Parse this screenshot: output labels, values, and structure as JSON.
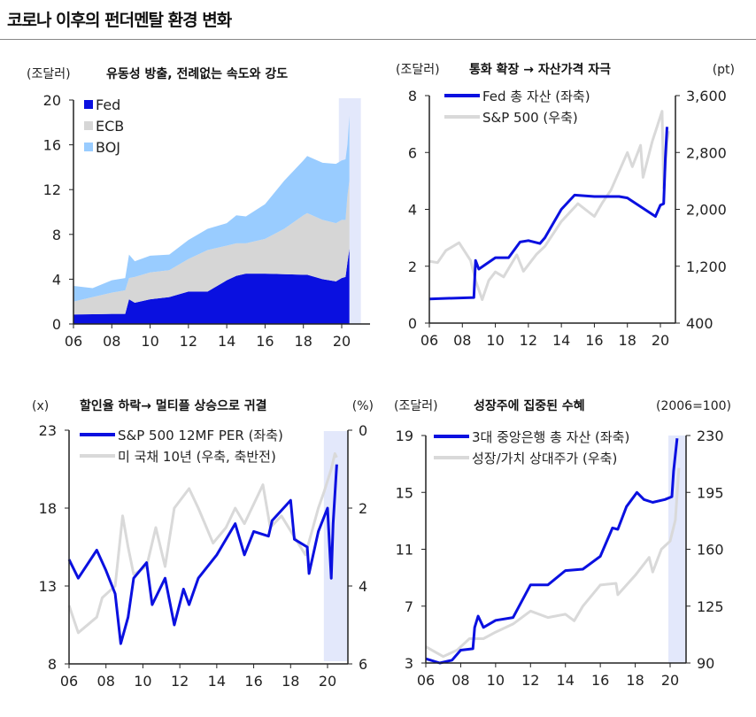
{
  "page_title": "코로나 이후의 펀더멘탈 환경 변화",
  "chart_data": [
    {
      "type": "area",
      "stacked": true,
      "title": "유동성 방출, 전례없는 속도와 강도",
      "ylabel": "(조달러)",
      "ylim": [
        0,
        20
      ],
      "yticks": [
        0,
        4,
        8,
        12,
        16,
        20
      ],
      "xticks": [
        "06",
        "08",
        "10",
        "12",
        "14",
        "16",
        "18",
        "20"
      ],
      "xlim": [
        2006,
        2021.2
      ],
      "shaded_period": [
        2019.85,
        2021
      ],
      "legend_position": "top-left",
      "x": [
        2006,
        2007,
        2008,
        2008.7,
        2008.9,
        2009.2,
        2010,
        2011,
        2012,
        2013,
        2014,
        2014.5,
        2015,
        2016,
        2017,
        2018,
        2018.2,
        2019,
        2019.7,
        2020,
        2020.2,
        2020.3,
        2020.4
      ],
      "series": [
        {
          "name": "Fed",
          "color": "#0a10e0",
          "values": [
            0.85,
            0.87,
            0.9,
            0.9,
            2.2,
            1.9,
            2.2,
            2.4,
            2.9,
            2.9,
            3.9,
            4.3,
            4.5,
            4.5,
            4.45,
            4.4,
            4.4,
            4.0,
            3.8,
            4.1,
            4.2,
            5.5,
            6.7
          ]
        },
        {
          "name": "ECB",
          "color": "#d6d6d6",
          "values": [
            1.15,
            1.53,
            1.9,
            2.1,
            1.9,
            2.3,
            2.4,
            2.4,
            2.9,
            3.7,
            3.1,
            2.9,
            2.7,
            3.1,
            4.05,
            5.3,
            5.5,
            5.3,
            5.2,
            5.2,
            5.1,
            6.0,
            6.1
          ]
        },
        {
          "name": "BOJ",
          "color": "#99ccff",
          "values": [
            1.4,
            0.8,
            1.1,
            1.1,
            2.1,
            1.4,
            1.5,
            1.4,
            1.7,
            1.9,
            2.0,
            2.5,
            2.4,
            3.1,
            4.3,
            4.9,
            5.1,
            5.1,
            5.3,
            5.3,
            5.4,
            4.5,
            5.8
          ]
        }
      ]
    },
    {
      "type": "line",
      "title": "통화 확장 → 자산가격 자극",
      "ylabel": "(조달러)",
      "y2label": "(pt)",
      "ylim": [
        0,
        8
      ],
      "yticks": [
        0,
        2,
        4,
        6,
        8
      ],
      "y2lim": [
        400,
        3600
      ],
      "y2ticks": [
        "400",
        "1,200",
        "2,000",
        "2,800",
        "3,600"
      ],
      "xticks": [
        "06",
        "08",
        "10",
        "12",
        "14",
        "16",
        "18",
        "20"
      ],
      "xlim": [
        2006,
        2021.2
      ],
      "legend_position": "top-left",
      "series": [
        {
          "name": "S&P 500 (우축)",
          "axis": "right",
          "color": "#d9d9d9",
          "x": [
            2006,
            2006.5,
            2007,
            2007.8,
            2008.5,
            2008.8,
            2009.2,
            2009.6,
            2010,
            2010.5,
            2011.3,
            2011.7,
            2012.5,
            2013,
            2014,
            2015,
            2016,
            2016.5,
            2017,
            2018,
            2018.3,
            2018.8,
            2018.95,
            2019.5,
            2020.1,
            2020.2,
            2020.4,
            2020.5
          ],
          "values": [
            1270,
            1250,
            1420,
            1530,
            1280,
            1000,
            730,
            1000,
            1120,
            1050,
            1360,
            1130,
            1370,
            1480,
            1830,
            2080,
            1900,
            2100,
            2270,
            2800,
            2600,
            2900,
            2450,
            2950,
            3380,
            2300,
            2950,
            3100
          ]
        },
        {
          "name": "Fed 총 자산 (좌축)",
          "axis": "left",
          "color": "#0a10e0",
          "x": [
            2006,
            2008.7,
            2008.8,
            2009,
            2009.5,
            2010,
            2010.8,
            2011.5,
            2012,
            2012.7,
            2013,
            2014,
            2014.8,
            2016,
            2017.5,
            2018,
            2019.7,
            2020,
            2020.2,
            2020.3,
            2020.4
          ],
          "values": [
            0.85,
            0.9,
            2.2,
            1.9,
            2.1,
            2.3,
            2.3,
            2.85,
            2.9,
            2.8,
            3.0,
            4.0,
            4.5,
            4.45,
            4.45,
            4.4,
            3.75,
            4.15,
            4.2,
            5.8,
            6.9
          ]
        }
      ]
    },
    {
      "type": "line",
      "title": "할인율 하락→ 멀티플 상승으로 귀결",
      "ylabel": "(x)",
      "y2label": "(%)",
      "ylim": [
        8,
        23
      ],
      "yticks": [
        8,
        13,
        18,
        23
      ],
      "y2lim": [
        6,
        0
      ],
      "y2ticks": [
        "6",
        "4",
        "2",
        "0"
      ],
      "y2_inverted": true,
      "xticks": [
        "06",
        "08",
        "10",
        "12",
        "14",
        "16",
        "18",
        "20"
      ],
      "xlim": [
        2006,
        2021.2
      ],
      "shaded_period": [
        2019.8,
        2021.2
      ],
      "legend_position": "top-left",
      "series": [
        {
          "name": "미 국채 10년 (우축, 축반전)",
          "axis": "right",
          "color": "#d9d9d9",
          "x": [
            2006,
            2006.5,
            2007.5,
            2007.8,
            2008.5,
            2008.9,
            2009.2,
            2009.5,
            2010.2,
            2010.7,
            2011.2,
            2011.7,
            2012.5,
            2013,
            2013.8,
            2014.5,
            2015,
            2015.5,
            2016.5,
            2016.9,
            2017.5,
            2018.8,
            2019.5,
            2019.8,
            2020.2,
            2020.4,
            2020.5
          ],
          "values": [
            4.5,
            5.2,
            4.8,
            4.3,
            4.0,
            2.2,
            3.0,
            3.7,
            3.5,
            2.5,
            3.5,
            2.0,
            1.5,
            2.0,
            2.9,
            2.5,
            2.0,
            2.4,
            1.4,
            2.5,
            2.2,
            3.2,
            2.0,
            1.6,
            1.0,
            0.6,
            0.7
          ]
        },
        {
          "name": "S&P 500 12MF PER (좌축)",
          "axis": "left",
          "color": "#0a10e0",
          "x": [
            2006,
            2006.5,
            2007.5,
            2008,
            2008.5,
            2008.8,
            2009.2,
            2009.5,
            2010.2,
            2010.5,
            2011.2,
            2011.7,
            2012.2,
            2012.5,
            2013,
            2014,
            2015,
            2015.5,
            2016,
            2016.8,
            2017,
            2018,
            2018.2,
            2018.9,
            2019,
            2019.5,
            2020,
            2020.2,
            2020.3,
            2020.5
          ],
          "values": [
            14.7,
            13.5,
            15.3,
            14,
            12.5,
            9.3,
            11,
            13.5,
            14.5,
            11.8,
            13.5,
            10.5,
            12.8,
            11.8,
            13.5,
            15,
            17,
            15,
            16.5,
            16.2,
            17.2,
            18.5,
            16,
            15.5,
            13.8,
            16.5,
            18,
            13.5,
            17,
            20.8
          ]
        }
      ]
    },
    {
      "type": "line",
      "title": "성장주에 집중된 수혜",
      "ylabel": "(조달러)",
      "y2label": "(2006=100)",
      "ylim": [
        3,
        19
      ],
      "yticks": [
        3,
        7,
        11,
        15,
        19
      ],
      "y2lim": [
        90,
        230
      ],
      "y2ticks": [
        "90",
        "125",
        "160",
        "195",
        "230"
      ],
      "xticks": [
        "06",
        "08",
        "10",
        "12",
        "14",
        "16",
        "18",
        "20"
      ],
      "xlim": [
        2006,
        2021.2
      ],
      "shaded_period": [
        2019.9,
        2021
      ],
      "legend_position": "top-left",
      "series": [
        {
          "name": "성장/가치 상대주가 (우축)",
          "axis": "right",
          "color": "#d9d9d9",
          "x": [
            2006,
            2007,
            2007.8,
            2008.5,
            2009.3,
            2010,
            2011,
            2012,
            2013,
            2014,
            2014.5,
            2015,
            2016,
            2016.9,
            2017,
            2018,
            2018.8,
            2019,
            2019.5,
            2020,
            2020.3,
            2020.5
          ],
          "values": [
            100,
            94,
            98,
            105,
            105,
            109,
            114,
            122,
            118,
            120,
            116,
            125,
            138,
            139,
            132,
            144,
            155,
            146,
            160,
            165,
            178,
            210
          ]
        },
        {
          "name": "3대 중앙은행 총 자산 (좌축)",
          "axis": "left",
          "color": "#0a10e0",
          "x": [
            2006,
            2006.8,
            2007.5,
            2008,
            2008.7,
            2008.8,
            2009,
            2009.3,
            2010,
            2011,
            2012,
            2013,
            2014,
            2015,
            2016,
            2016.7,
            2017,
            2017.5,
            2018.1,
            2018.5,
            2019,
            2019.7,
            2020.1,
            2020.2,
            2020.4
          ],
          "values": [
            3.3,
            3.0,
            3.2,
            3.9,
            4.0,
            5.5,
            6.3,
            5.5,
            6.0,
            6.2,
            8.5,
            8.5,
            9.5,
            9.6,
            10.5,
            12.5,
            12.4,
            14,
            15,
            14.5,
            14.3,
            14.5,
            14.7,
            16.5,
            18.8
          ]
        }
      ]
    }
  ]
}
